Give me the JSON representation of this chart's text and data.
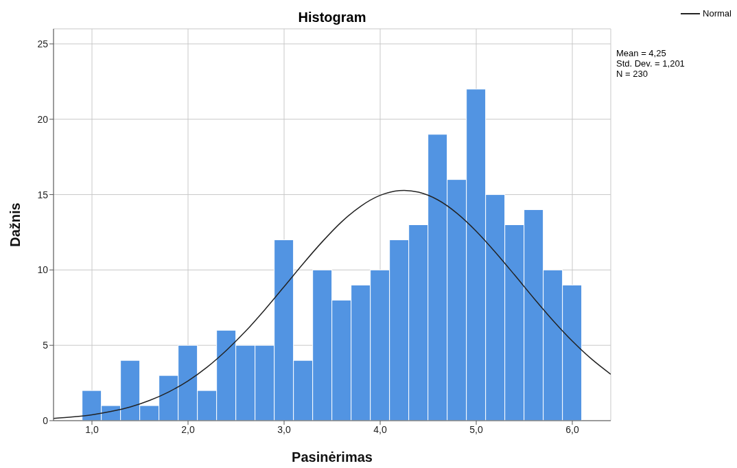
{
  "chart_data": {
    "type": "histogram",
    "title": "Histogram",
    "xlabel": "Pasinėrimas",
    "ylabel": "Dažnis",
    "bins": [
      0.9,
      1.1,
      1.3,
      1.5,
      1.7,
      1.9,
      2.1,
      2.3,
      2.5,
      2.7,
      2.9,
      3.1,
      3.3,
      3.5,
      3.7,
      3.9,
      4.1,
      4.3,
      4.5,
      4.7,
      4.9,
      5.1,
      5.3,
      5.5,
      5.7,
      5.9,
      6.1
    ],
    "values": [
      2,
      1,
      4,
      1,
      3,
      5,
      2,
      6,
      5,
      5,
      12,
      4,
      10,
      8,
      9,
      10,
      12,
      13,
      19,
      16,
      22,
      15,
      13,
      14,
      10,
      9
    ],
    "color": "#5294e2",
    "series": [
      {
        "type": "line",
        "name": "Normal",
        "color": "#222222",
        "x": [
          0.6,
          0.8,
          1.0,
          1.2,
          1.4,
          1.6,
          1.8,
          2.0,
          2.2,
          2.4,
          2.6,
          2.8,
          3.0,
          3.2,
          3.4,
          3.6,
          3.8,
          4.0,
          4.2,
          4.25,
          4.4,
          4.6,
          4.8,
          5.0,
          5.2,
          5.4,
          5.6,
          5.8,
          6.0,
          6.2,
          6.4
        ],
        "values": [
          0.15,
          0.25,
          0.39,
          0.61,
          0.91,
          1.34,
          1.91,
          2.64,
          3.56,
          4.67,
          5.94,
          7.37,
          8.89,
          10.43,
          11.89,
          13.2,
          14.24,
          14.95,
          15.27,
          15.28,
          15.16,
          14.65,
          13.76,
          12.57,
          11.17,
          9.66,
          8.12,
          6.64,
          5.28,
          4.09,
          3.08
        ]
      }
    ],
    "xlim": [
      0.6,
      6.4
    ],
    "xticks": [
      {
        "value": 1,
        "label": "1,0"
      },
      {
        "value": 2,
        "label": "2,0"
      },
      {
        "value": 3,
        "label": "3,0"
      },
      {
        "value": 4,
        "label": "4,0"
      },
      {
        "value": 5,
        "label": "5,0"
      },
      {
        "value": 6,
        "label": "6,0"
      }
    ],
    "ylim": [
      0,
      26
    ],
    "yticks": [
      0,
      5,
      10,
      15,
      20,
      25
    ],
    "grid": true,
    "legend": "top right",
    "annotations": [
      "Mean = 4,25",
      "Std. Dev. = 1,201",
      "N = 230"
    ]
  }
}
